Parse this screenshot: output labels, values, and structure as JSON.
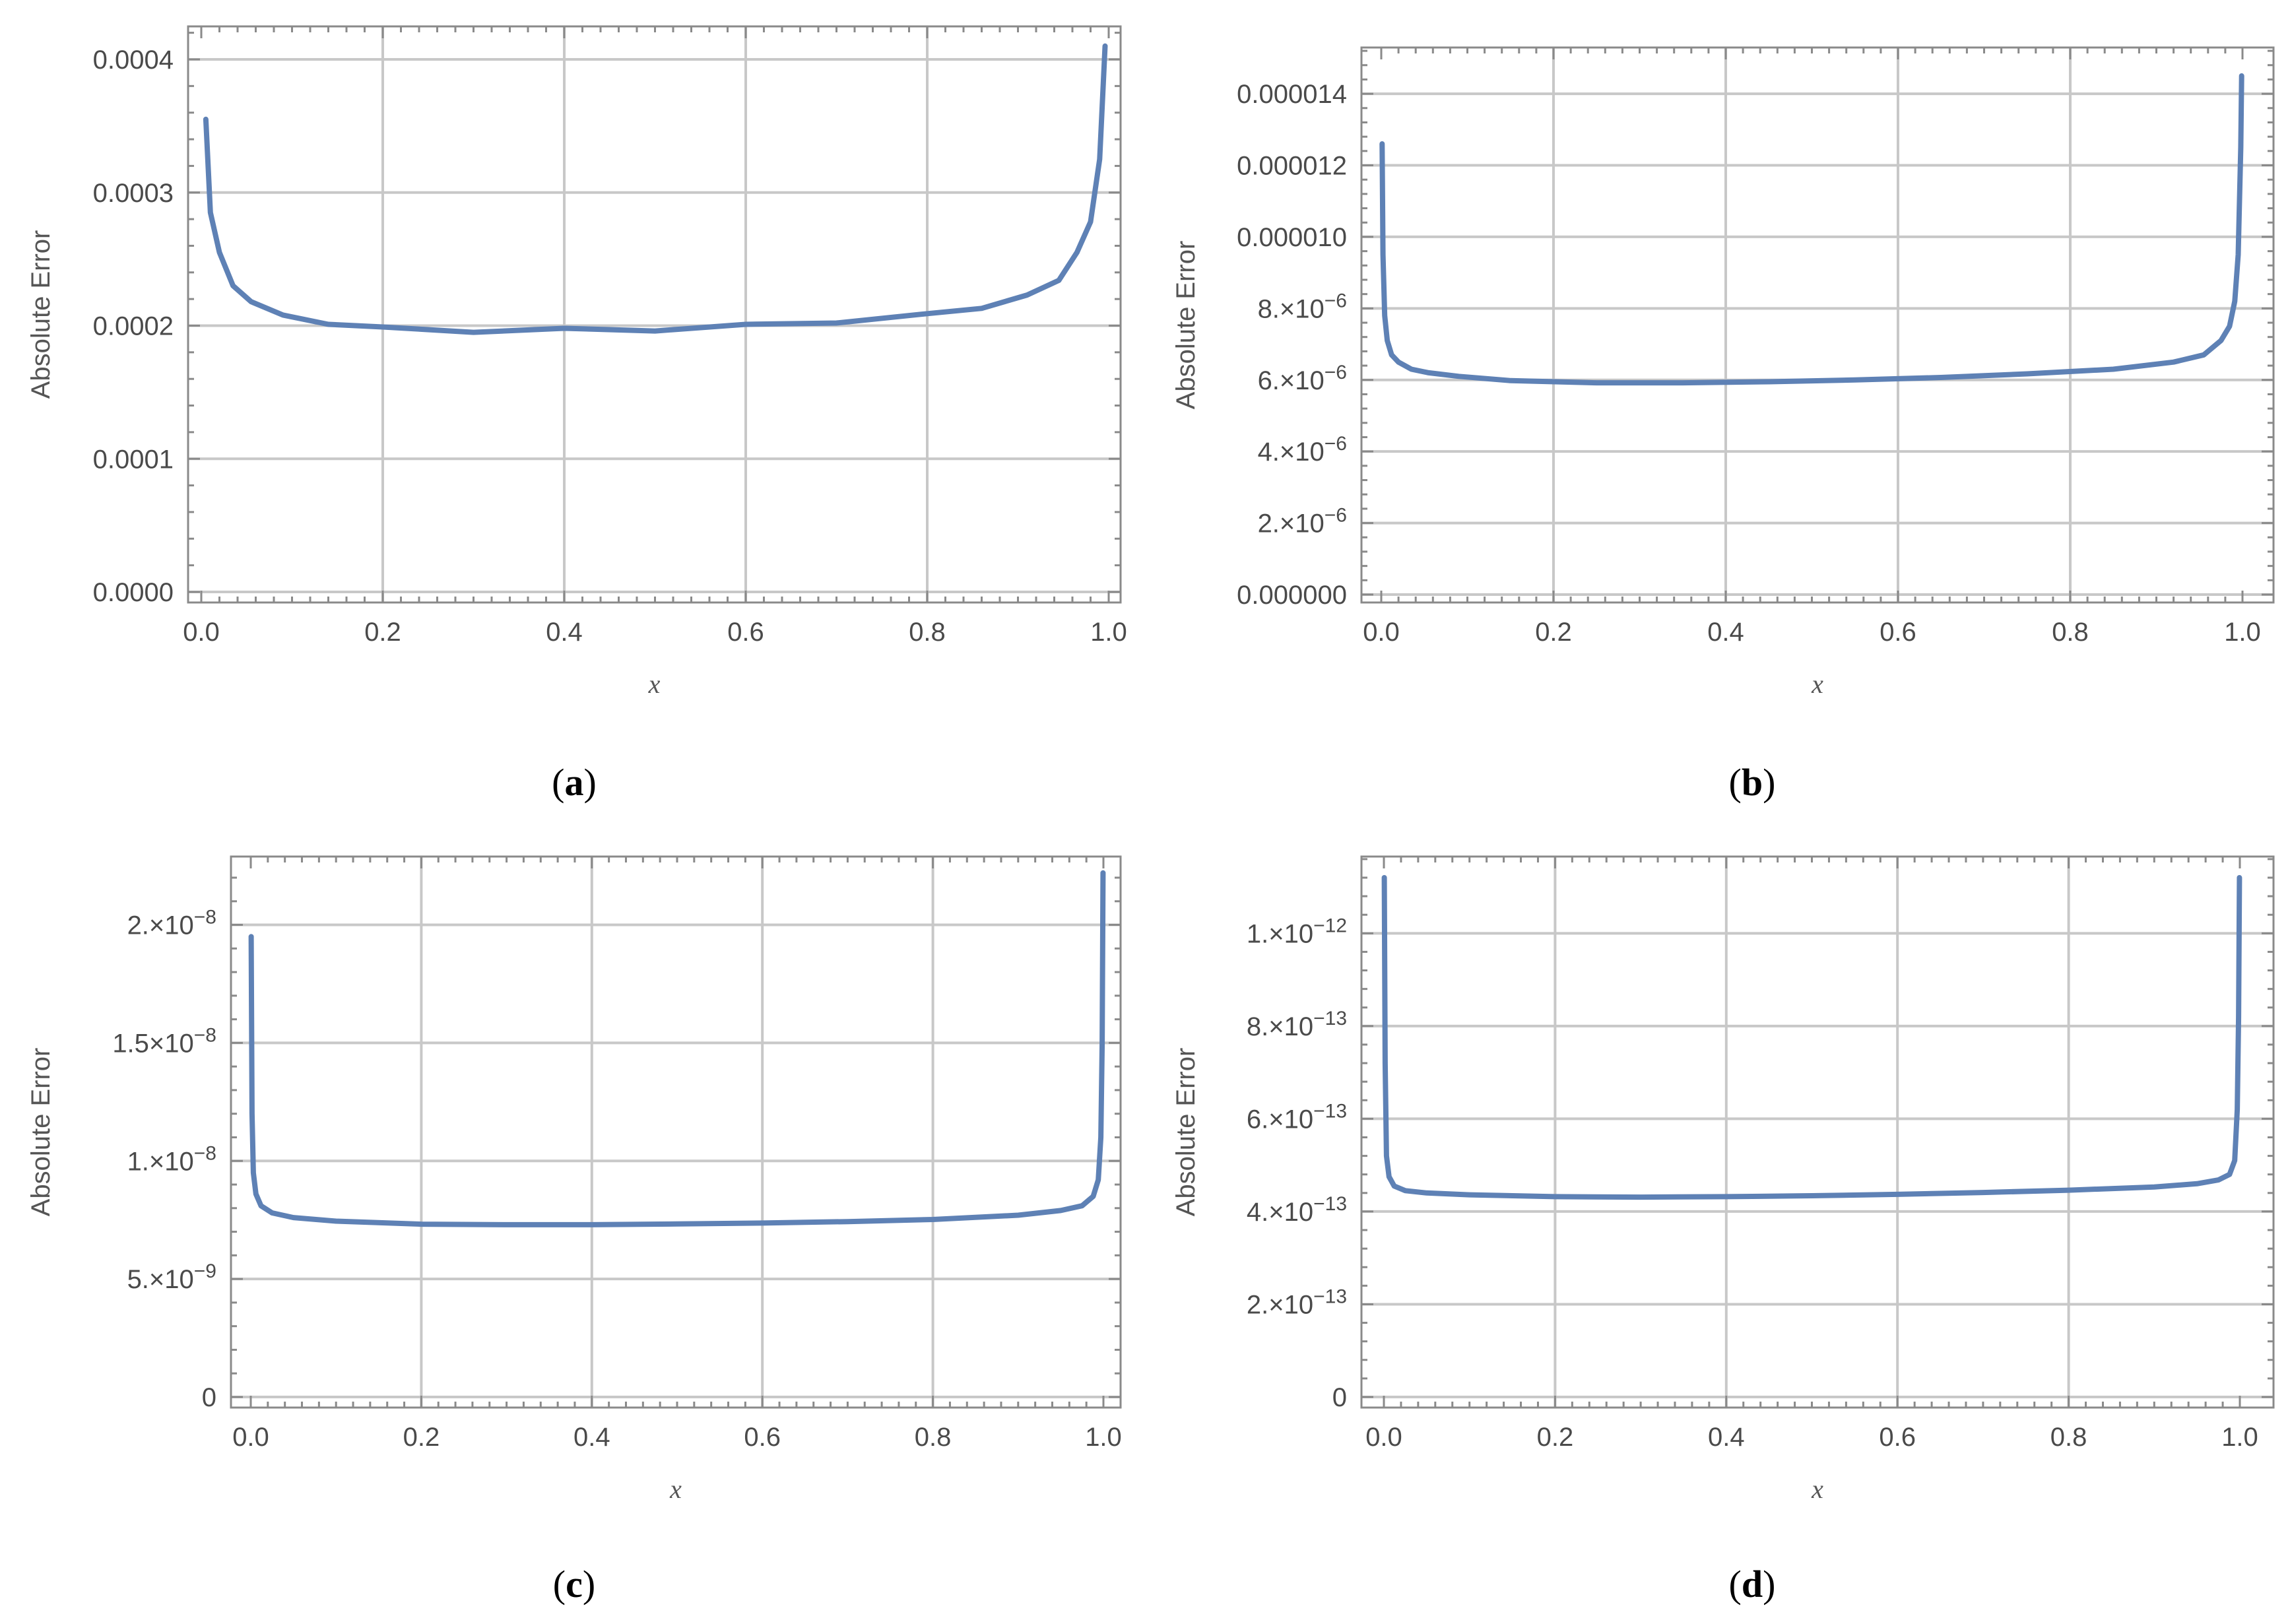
{
  "colors": {
    "series": "#5e81b5",
    "grid": "#c8c8c8",
    "frame": "#8a8a8a"
  },
  "chart_data": [
    {
      "panel": "a",
      "caption": "(a)",
      "type": "line",
      "xlabel": "x",
      "ylabel": "Absolute Error",
      "xlim": [
        0,
        1
      ],
      "ylim": [
        0,
        0.0004
      ],
      "grid": true,
      "x_ticks": [
        {
          "value": 0.0,
          "label": "0.0"
        },
        {
          "value": 0.2,
          "label": "0.2"
        },
        {
          "value": 0.4,
          "label": "0.4"
        },
        {
          "value": 0.6,
          "label": "0.6"
        },
        {
          "value": 0.8,
          "label": "0.8"
        },
        {
          "value": 1.0,
          "label": "1.0"
        }
      ],
      "y_ticks": [
        {
          "value": 0.0,
          "label": "0.0000"
        },
        {
          "value": 0.0001,
          "label": "0.0001"
        },
        {
          "value": 0.0002,
          "label": "0.0002"
        },
        {
          "value": 0.0003,
          "label": "0.0003"
        },
        {
          "value": 0.0004,
          "label": "0.0004"
        }
      ],
      "series": [
        {
          "x": [
            0.005,
            0.01,
            0.02,
            0.035,
            0.055,
            0.09,
            0.14,
            0.2,
            0.3,
            0.4,
            0.5,
            0.6,
            0.7,
            0.8,
            0.86,
            0.91,
            0.945,
            0.965,
            0.98,
            0.99,
            0.996
          ],
          "y": [
            0.000355,
            0.000285,
            0.000255,
            0.00023,
            0.000218,
            0.000208,
            0.000201,
            0.000199,
            0.000195,
            0.000198,
            0.000196,
            0.000201,
            0.000202,
            0.000209,
            0.000213,
            0.000223,
            0.000234,
            0.000255,
            0.000278,
            0.000325,
            0.00041
          ]
        }
      ]
    },
    {
      "panel": "b",
      "caption": "(b)",
      "type": "line",
      "xlabel": "x",
      "ylabel": "Absolute Error",
      "xlim": [
        0,
        1
      ],
      "ylim": [
        0,
        1.45e-05
      ],
      "grid": true,
      "x_ticks": [
        {
          "value": 0.0,
          "label": "0.0"
        },
        {
          "value": 0.2,
          "label": "0.2"
        },
        {
          "value": 0.4,
          "label": "0.4"
        },
        {
          "value": 0.6,
          "label": "0.6"
        },
        {
          "value": 0.8,
          "label": "0.8"
        },
        {
          "value": 1.0,
          "label": "1.0"
        }
      ],
      "y_ticks": [
        {
          "value": 0.0,
          "label": "0.000000"
        },
        {
          "value": 2e-06,
          "label": "2.×10",
          "exp": "−6"
        },
        {
          "value": 4e-06,
          "label": "4.×10",
          "exp": "−6"
        },
        {
          "value": 6e-06,
          "label": "6.×10",
          "exp": "−6"
        },
        {
          "value": 8e-06,
          "label": "8.×10",
          "exp": "−6"
        },
        {
          "value": 1e-05,
          "label": "0.000010"
        },
        {
          "value": 1.2e-05,
          "label": "0.000012"
        },
        {
          "value": 1.4e-05,
          "label": "0.000014"
        }
      ],
      "series": [
        {
          "x": [
            0.001,
            0.002,
            0.004,
            0.007,
            0.012,
            0.02,
            0.035,
            0.055,
            0.09,
            0.15,
            0.25,
            0.35,
            0.45,
            0.55,
            0.65,
            0.75,
            0.85,
            0.92,
            0.955,
            0.975,
            0.985,
            0.991,
            0.995,
            0.998,
            0.999
          ],
          "y": [
            1.26e-05,
            9.5e-06,
            7.8e-06,
            7.1e-06,
            6.7e-06,
            6.5e-06,
            6.3e-06,
            6.2e-06,
            6.1e-06,
            5.98e-06,
            5.92e-06,
            5.92e-06,
            5.95e-06,
            6e-06,
            6.07e-06,
            6.17e-06,
            6.3e-06,
            6.5e-06,
            6.7e-06,
            7.1e-06,
            7.5e-06,
            8.2e-06,
            9.5e-06,
            1.25e-05,
            1.45e-05
          ]
        }
      ]
    },
    {
      "panel": "c",
      "caption": "(c)",
      "type": "line",
      "xlabel": "x",
      "ylabel": "Absolute Error",
      "xlim": [
        0,
        1
      ],
      "ylim": [
        0,
        2.2e-08
      ],
      "grid": true,
      "x_ticks": [
        {
          "value": 0.0,
          "label": "0.0"
        },
        {
          "value": 0.2,
          "label": "0.2"
        },
        {
          "value": 0.4,
          "label": "0.4"
        },
        {
          "value": 0.6,
          "label": "0.6"
        },
        {
          "value": 0.8,
          "label": "0.8"
        },
        {
          "value": 1.0,
          "label": "1.0"
        }
      ],
      "y_ticks": [
        {
          "value": 0,
          "label": "0"
        },
        {
          "value": 5e-09,
          "label": "5.×10",
          "exp": "−9"
        },
        {
          "value": 1e-08,
          "label": "1.×10",
          "exp": "−8"
        },
        {
          "value": 1.5e-08,
          "label": "1.5×10",
          "exp": "−8"
        },
        {
          "value": 2e-08,
          "label": "2.×10",
          "exp": "−8"
        }
      ],
      "series": [
        {
          "x": [
            0.0005,
            0.0015,
            0.003,
            0.006,
            0.012,
            0.025,
            0.05,
            0.1,
            0.2,
            0.3,
            0.4,
            0.5,
            0.6,
            0.7,
            0.8,
            0.9,
            0.95,
            0.975,
            0.988,
            0.994,
            0.997,
            0.9985,
            0.9995
          ],
          "y": [
            1.95e-08,
            1.2e-08,
            9.5e-09,
            8.6e-09,
            8.1e-09,
            7.8e-09,
            7.6e-09,
            7.45e-09,
            7.32e-09,
            7.3e-09,
            7.3e-09,
            7.33e-09,
            7.37e-09,
            7.43e-09,
            7.52e-09,
            7.7e-09,
            7.9e-09,
            8.1e-09,
            8.5e-09,
            9.2e-09,
            1.1e-08,
            1.5e-08,
            2.22e-08
          ]
        }
      ]
    },
    {
      "panel": "d",
      "caption": "(d)",
      "type": "line",
      "xlabel": "x",
      "ylabel": "Absolute Error",
      "xlim": [
        0,
        1
      ],
      "ylim": [
        0,
        1.12e-12
      ],
      "grid": true,
      "x_ticks": [
        {
          "value": 0.0,
          "label": "0.0"
        },
        {
          "value": 0.2,
          "label": "0.2"
        },
        {
          "value": 0.4,
          "label": "0.4"
        },
        {
          "value": 0.6,
          "label": "0.6"
        },
        {
          "value": 0.8,
          "label": "0.8"
        },
        {
          "value": 1.0,
          "label": "1.0"
        }
      ],
      "y_ticks": [
        {
          "value": 0,
          "label": "0"
        },
        {
          "value": 2e-13,
          "label": "2.×10",
          "exp": "−13"
        },
        {
          "value": 4e-13,
          "label": "4.×10",
          "exp": "−13"
        },
        {
          "value": 6e-13,
          "label": "6.×10",
          "exp": "−13"
        },
        {
          "value": 8e-13,
          "label": "8.×10",
          "exp": "−13"
        },
        {
          "value": 1e-12,
          "label": "1.×10",
          "exp": "−12"
        }
      ],
      "series": [
        {
          "x": [
            0.0005,
            0.0015,
            0.003,
            0.006,
            0.012,
            0.025,
            0.05,
            0.1,
            0.2,
            0.3,
            0.4,
            0.5,
            0.6,
            0.7,
            0.8,
            0.9,
            0.95,
            0.975,
            0.988,
            0.994,
            0.997,
            0.9985,
            0.9995
          ],
          "y": [
            1.12e-12,
            7.2e-13,
            5.2e-13,
            4.75e-13,
            4.55e-13,
            4.45e-13,
            4.4e-13,
            4.36e-13,
            4.32e-13,
            4.31e-13,
            4.32e-13,
            4.34e-13,
            4.37e-13,
            4.41e-13,
            4.46e-13,
            4.53e-13,
            4.6e-13,
            4.68e-13,
            4.8e-13,
            5.1e-13,
            6.2e-13,
            8.2e-13,
            1.12e-12
          ]
        }
      ]
    }
  ]
}
